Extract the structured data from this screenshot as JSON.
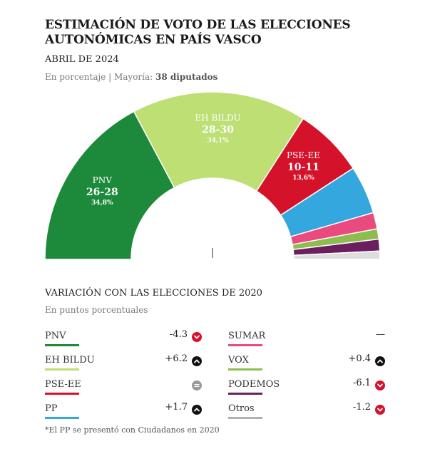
{
  "title": "ESTIMACIÓN DE VOTO DE LAS ELECCIONES AUTONÓMICAS EN PAÍS VASCO",
  "date": "ABRIL DE 2024",
  "subtitle_prefix": "En porcentaje | Mayoría:",
  "subtitle_majority": "38 diputados",
  "chart_data": {
    "type": "hemicycle",
    "total_seats": 75,
    "majority": "38 diputados",
    "parties": [
      {
        "name": "PNV",
        "seats_label": "26-28",
        "pct_label": "34,8%",
        "share": 34.8,
        "color": "#1c8a3a",
        "label_color": "#ffffff"
      },
      {
        "name": "EH BILDU",
        "seats_label": "28-30",
        "pct_label": "34,1%",
        "share": 34.1,
        "color": "#bedf73",
        "label_color": "#ffffff"
      },
      {
        "name": "PSE-EE",
        "seats_label": "10-11",
        "pct_label": "13,6%",
        "share": 13.6,
        "color": "#d4132a",
        "label_color": "#ffffff"
      },
      {
        "name": "PP",
        "seats_label": "",
        "pct_label": "",
        "share": 9.4,
        "color": "#34a7de",
        "label_color": "#ffffff"
      },
      {
        "name": "SUMAR",
        "seats_label": "",
        "pct_label": "",
        "share": 3.2,
        "color": "#ea4a7d",
        "label_color": "#ffffff"
      },
      {
        "name": "VOX",
        "seats_label": "",
        "pct_label": "",
        "share": 2.0,
        "color": "#8cbd4e",
        "label_color": "#ffffff"
      },
      {
        "name": "PODEMOS",
        "seats_label": "",
        "pct_label": "",
        "share": 2.3,
        "color": "#6b1f5e",
        "label_color": "#ffffff"
      },
      {
        "name": "Otros",
        "seats_label": "",
        "pct_label": "",
        "share": 1.6,
        "color": "#dedede",
        "label_color": "#ffffff"
      }
    ]
  },
  "variation": {
    "title": "VARIACIÓN CON LAS ELECCIONES DE 2020",
    "subtitle": "En puntos porcentuales",
    "rows": [
      {
        "party": "PNV",
        "value": "-4.3",
        "direction": "down",
        "color": "#1c8a3a"
      },
      {
        "party": "EH BILDU",
        "value": "+6.2",
        "direction": "up",
        "color": "#bedf73"
      },
      {
        "party": "PSE-EE",
        "value": "",
        "direction": "equal",
        "color": "#d4132a"
      },
      {
        "party": "PP",
        "value": "+1.7",
        "direction": "up",
        "color": "#34a7de"
      },
      {
        "party": "SUMAR",
        "value": "—",
        "direction": "none",
        "color": "#ea4a7d"
      },
      {
        "party": "VOX",
        "value": "+0.4",
        "direction": "up",
        "color": "#8cbd4e"
      },
      {
        "party": "PODEMOS",
        "value": "-6.1",
        "direction": "down",
        "color": "#6b1f5e"
      },
      {
        "party": "Otros",
        "value": "-1.2",
        "direction": "down",
        "color": "#b0b0b0"
      }
    ]
  },
  "footnote": "*El PP se presentó con Ciudadanos en 2020",
  "colors": {
    "down": "#d4132a",
    "up": "#111111",
    "equal": "#9a9a9a"
  }
}
